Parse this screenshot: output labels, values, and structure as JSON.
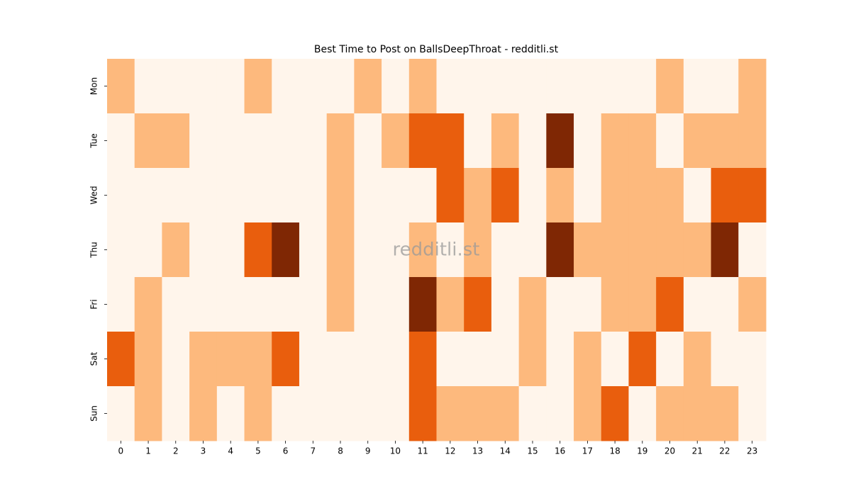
{
  "chart_data": {
    "type": "heatmap",
    "title": "Best Time to Post on BallsDeepThroat - redditli.st",
    "watermark": "redditli.st",
    "categories": [
      "0",
      "1",
      "2",
      "3",
      "4",
      "5",
      "6",
      "7",
      "8",
      "9",
      "10",
      "11",
      "12",
      "13",
      "14",
      "15",
      "16",
      "17",
      "18",
      "19",
      "20",
      "21",
      "22",
      "23"
    ],
    "rows": [
      "Mon",
      "Tue",
      "Wed",
      "Thu",
      "Fri",
      "Sat",
      "Sun"
    ],
    "colormap": [
      "#fff5eb",
      "#fdb97d",
      "#e95e0d",
      "#7f2704"
    ],
    "values": [
      [
        1,
        0,
        0,
        0,
        0,
        1,
        0,
        0,
        0,
        1,
        0,
        1,
        0,
        0,
        0,
        0,
        0,
        0,
        0,
        0,
        1,
        0,
        0,
        1
      ],
      [
        0,
        1,
        1,
        0,
        0,
        0,
        0,
        0,
        1,
        0,
        1,
        2,
        2,
        0,
        1,
        0,
        3,
        0,
        1,
        1,
        0,
        1,
        1,
        1
      ],
      [
        0,
        0,
        0,
        0,
        0,
        0,
        0,
        0,
        1,
        0,
        0,
        0,
        2,
        1,
        2,
        0,
        1,
        0,
        1,
        1,
        1,
        0,
        2,
        2
      ],
      [
        0,
        0,
        1,
        0,
        0,
        2,
        3,
        0,
        1,
        0,
        0,
        1,
        0,
        1,
        0,
        0,
        3,
        1,
        1,
        1,
        1,
        1,
        3,
        0
      ],
      [
        0,
        1,
        0,
        0,
        0,
        0,
        0,
        0,
        1,
        0,
        0,
        3,
        1,
        2,
        0,
        1,
        0,
        0,
        1,
        1,
        2,
        0,
        0,
        1
      ],
      [
        2,
        1,
        0,
        1,
        1,
        1,
        2,
        0,
        0,
        0,
        0,
        2,
        0,
        0,
        0,
        1,
        0,
        1,
        0,
        2,
        0,
        1,
        0,
        0
      ],
      [
        0,
        1,
        0,
        1,
        0,
        1,
        0,
        0,
        0,
        0,
        0,
        2,
        1,
        1,
        1,
        0,
        0,
        1,
        2,
        0,
        1,
        1,
        1,
        0
      ]
    ]
  }
}
